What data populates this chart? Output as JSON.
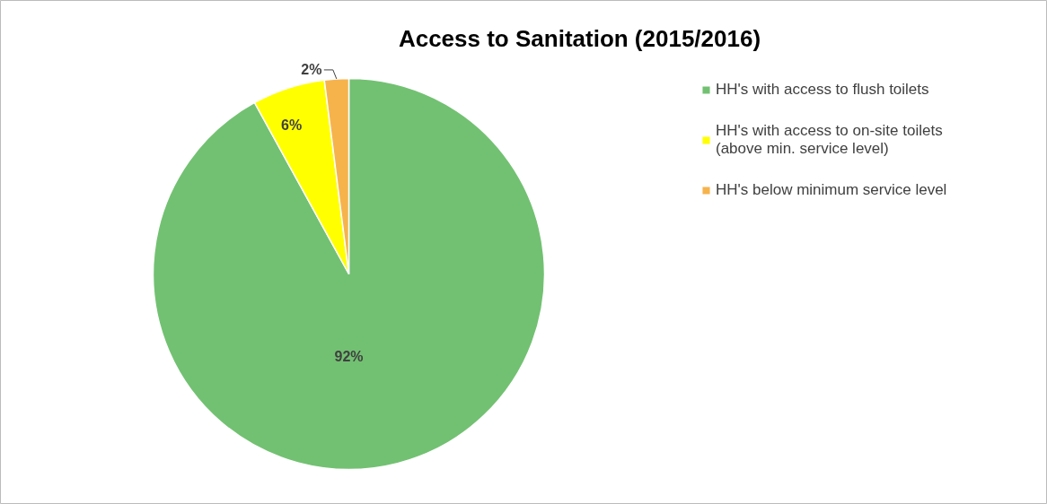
{
  "chart_data": {
    "type": "pie",
    "title": "Access to Sanitation (2015/2016)",
    "categories": [
      "HH's with access to flush toilets",
      "HH's with access to on-site toilets\n(above min. service level)",
      "HH's below minimum service level"
    ],
    "values": [
      92,
      6,
      2
    ],
    "colors": [
      "#72c172",
      "#ffff00",
      "#f6b34c"
    ],
    "value_labels": [
      "92%",
      "6%",
      "2%"
    ],
    "legend": "right"
  }
}
